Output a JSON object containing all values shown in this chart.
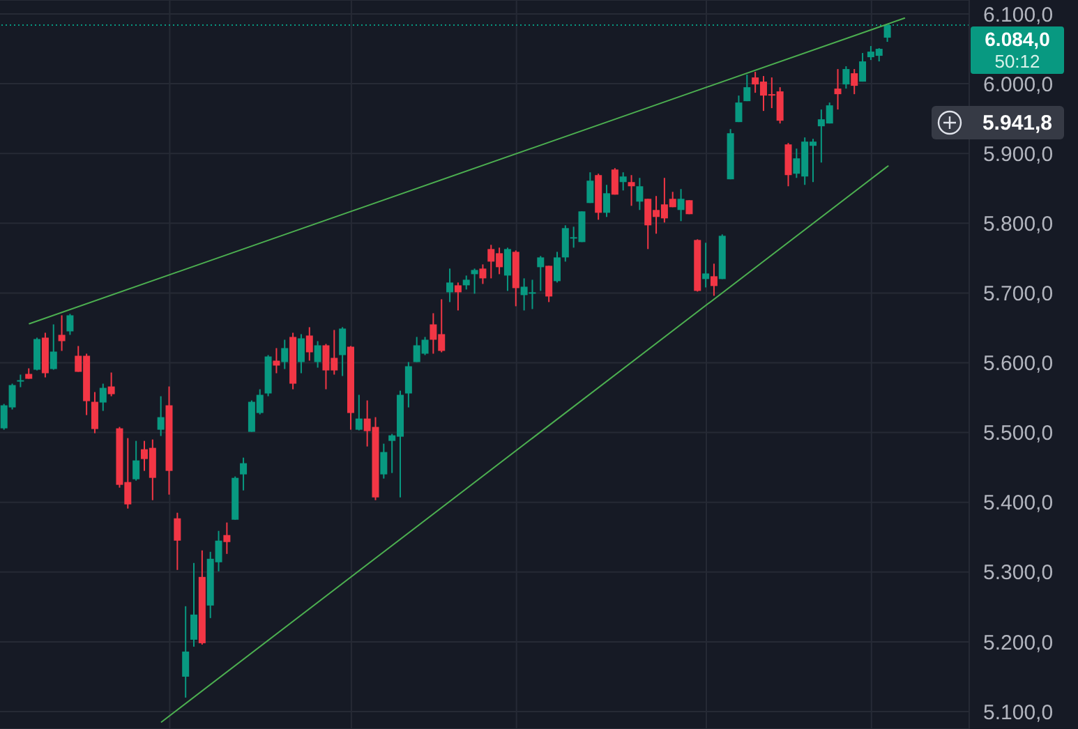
{
  "chart_data": {
    "type": "candlestick",
    "categories": [
      null,
      null,
      null,
      null,
      null,
      null,
      null,
      null,
      null,
      null,
      null,
      null,
      null,
      null,
      null,
      null,
      null,
      null,
      null,
      null,
      null,
      null,
      null,
      null,
      null,
      null,
      null,
      null,
      null,
      null,
      null,
      null,
      null,
      null,
      null,
      null,
      null,
      null,
      null,
      null,
      null,
      null,
      null,
      null,
      null,
      null,
      null,
      null,
      null,
      null,
      null,
      null,
      null,
      null,
      null,
      null,
      null,
      null,
      null,
      null,
      null,
      null,
      null,
      null,
      null,
      null,
      null,
      null,
      null,
      null,
      null,
      null,
      null,
      null,
      null,
      null,
      null,
      null,
      null,
      null,
      null,
      null,
      null,
      null,
      null,
      null,
      null,
      null,
      null,
      null,
      null,
      null,
      null,
      null,
      null,
      null,
      null,
      null,
      null,
      null,
      null,
      null,
      null,
      null,
      null,
      null,
      null,
      null,
      null,
      null
    ],
    "ohlc": [
      [
        5506,
        5541,
        5504,
        5539
      ],
      [
        5536,
        5570,
        5533,
        5568
      ],
      [
        5574,
        5583,
        5565,
        5575
      ],
      [
        5584,
        5592,
        5577,
        5577
      ],
      [
        5590,
        5636,
        5589,
        5634
      ],
      [
        5636,
        5643,
        5579,
        5585
      ],
      [
        5591,
        5655,
        5590,
        5616
      ],
      [
        5640,
        5668,
        5617,
        5631
      ],
      [
        5645,
        5670,
        5640,
        5668
      ],
      [
        5610,
        5624,
        5587,
        5587
      ],
      [
        5610,
        5613,
        5525,
        5545
      ],
      [
        5544,
        5558,
        5499,
        5505
      ],
      [
        5543,
        5570,
        5531,
        5564
      ],
      [
        5566,
        5586,
        5552,
        5555
      ],
      [
        5506,
        5508,
        5421,
        5425
      ],
      [
        5429,
        5492,
        5391,
        5397
      ],
      [
        5433,
        5488,
        5431,
        5460
      ],
      [
        5476,
        5488,
        5445,
        5462
      ],
      [
        5478,
        5490,
        5403,
        5435
      ],
      [
        5504,
        5552,
        5495,
        5522
      ],
      [
        5539,
        5566,
        5411,
        5445
      ],
      [
        5377,
        5385,
        5303,
        5345
      ],
      [
        5150,
        5251,
        5120,
        5186
      ],
      [
        5203,
        5313,
        5193,
        5239
      ],
      [
        5293,
        5331,
        5196,
        5198
      ],
      [
        5252,
        5329,
        5234,
        5319
      ],
      [
        5314,
        5359,
        5301,
        5345
      ],
      [
        5353,
        5371,
        5326,
        5343
      ],
      [
        5375,
        5437,
        5375,
        5435
      ],
      [
        5440,
        5464,
        5417,
        5456
      ],
      [
        5501,
        5546,
        5501,
        5544
      ],
      [
        5528,
        5562,
        5526,
        5554
      ],
      [
        5556,
        5611,
        5552,
        5609
      ],
      [
        5603,
        5621,
        5585,
        5596
      ],
      [
        5601,
        5633,
        5591,
        5621
      ],
      [
        5637,
        5643,
        5562,
        5570
      ],
      [
        5601,
        5641,
        5585,
        5635
      ],
      [
        5639,
        5651,
        5603,
        5615
      ],
      [
        5601,
        5631,
        5593,
        5625
      ],
      [
        5625,
        5627,
        5562,
        5589
      ],
      [
        5607,
        5647,
        5583,
        5589
      ],
      [
        5611,
        5651,
        5581,
        5649
      ],
      [
        5623,
        5624,
        5504,
        5528
      ],
      [
        5504,
        5554,
        5503,
        5520
      ],
      [
        5520,
        5546,
        5480,
        5502
      ],
      [
        5508,
        5522,
        5403,
        5407
      ],
      [
        5440,
        5484,
        5434,
        5472
      ],
      [
        5488,
        5498,
        5442,
        5496
      ],
      [
        5494,
        5560,
        5407,
        5554
      ],
      [
        5556,
        5601,
        5536,
        5595
      ],
      [
        5601,
        5637,
        5601,
        5625
      ],
      [
        5613,
        5637,
        5611,
        5633
      ],
      [
        5655,
        5671,
        5613,
        5633
      ],
      [
        5641,
        5691,
        5615,
        5617
      ],
      [
        5701,
        5735,
        5687,
        5715
      ],
      [
        5711,
        5715,
        5675,
        5701
      ],
      [
        5711,
        5725,
        5705,
        5719
      ],
      [
        5727,
        5735,
        5699,
        5733
      ],
      [
        5735,
        5741,
        5713,
        5721
      ],
      [
        5763,
        5769,
        5721,
        5745
      ],
      [
        5757,
        5765,
        5727,
        5737
      ],
      [
        5725,
        5765,
        5703,
        5763
      ],
      [
        5759,
        5761,
        5681,
        5707
      ],
      [
        5697,
        5721,
        5675,
        5709
      ],
      [
        5701,
        5719,
        5677,
        5701
      ],
      [
        5737,
        5753,
        5703,
        5751
      ],
      [
        5739,
        5739,
        5687,
        5695
      ],
      [
        5717,
        5759,
        5715,
        5751
      ],
      [
        5751,
        5797,
        5745,
        5793
      ],
      [
        5780,
        5795,
        5765,
        5780
      ],
      [
        5773,
        5817,
        5773,
        5817
      ],
      [
        5829,
        5873,
        5829,
        5861
      ],
      [
        5869,
        5871,
        5805,
        5815
      ],
      [
        5815,
        5855,
        5809,
        5843
      ],
      [
        5877,
        5879,
        5841,
        5841
      ],
      [
        5859,
        5873,
        5847,
        5867
      ],
      [
        5859,
        5869,
        5825,
        5853
      ],
      [
        5831,
        5865,
        5819,
        5853
      ],
      [
        5835,
        5835,
        5763,
        5797
      ],
      [
        5819,
        5839,
        5785,
        5809
      ],
      [
        5827,
        5865,
        5801,
        5807
      ],
      [
        5835,
        5845,
        5823,
        5823
      ],
      [
        5819,
        5849,
        5803,
        5835
      ],
      [
        5833,
        5833,
        5813,
        5813
      ],
      [
        5776,
        5777,
        5702,
        5703
      ],
      [
        5720,
        5772,
        5708,
        5728
      ],
      [
        5724,
        5742,
        5696,
        5710
      ],
      [
        5720,
        5784,
        5720,
        5782
      ],
      [
        5863,
        5935,
        5863,
        5929
      ],
      [
        5945,
        5983,
        5945,
        5973
      ],
      [
        5975,
        6013,
        5975,
        5995
      ],
      [
        6009,
        6017,
        5987,
        5999
      ],
      [
        6003,
        6011,
        5961,
        5983
      ],
      [
        5985,
        6009,
        5965,
        5984
      ],
      [
        5989,
        5995,
        5943,
        5947
      ],
      [
        5913,
        5915,
        5853,
        5869
      ],
      [
        5871,
        5907,
        5865,
        5893
      ],
      [
        5867,
        5923,
        5855,
        5917
      ],
      [
        5911,
        5921,
        5859,
        5917
      ],
      [
        5939,
        5963,
        5887,
        5949
      ],
      [
        5943,
        5973,
        5943,
        5969
      ],
      [
        5993,
        6021,
        5963,
        5985
      ],
      [
        5999,
        6025,
        5993,
        6021
      ],
      [
        6015,
        6021,
        5985,
        5997
      ],
      [
        6003,
        6044,
        6003,
        6032
      ],
      [
        6038,
        6054,
        6034,
        6046
      ],
      [
        6040,
        6051,
        6032,
        6050
      ],
      [
        6066,
        6086,
        6060,
        6084
      ],
      null,
      null
    ],
    "colors": [
      "#089981",
      "#089981",
      "#089981",
      "#f23645",
      "#089981",
      "#f23645",
      "#089981",
      "#f23645",
      "#089981",
      "#f23645",
      "#f23645",
      "#f23645",
      "#089981",
      "#f23645",
      "#f23645",
      "#f23645",
      "#089981",
      "#f23645",
      "#f23645",
      "#089981",
      "#f23645",
      "#f23645",
      "#089981",
      "#089981",
      "#f23645",
      "#089981",
      "#089981",
      "#f23645",
      "#089981",
      "#089981",
      "#089981",
      "#089981",
      "#089981",
      "#f23645",
      "#089981",
      "#f23645",
      "#089981",
      "#f23645",
      "#089981",
      "#f23645",
      "#f23645",
      "#089981",
      "#f23645",
      "#089981",
      "#f23645",
      "#f23645",
      "#089981",
      "#089981",
      "#089981",
      "#089981",
      "#089981",
      "#089981",
      "#f23645",
      "#f23645",
      "#089981",
      "#f23645",
      "#089981",
      "#089981",
      "#f23645",
      "#f23645",
      "#f23645",
      "#089981",
      "#f23645",
      "#089981",
      "#089981",
      "#089981",
      "#f23645",
      "#089981",
      "#089981",
      "#089981",
      "#089981",
      "#089981",
      "#f23645",
      "#089981",
      "#f23645",
      "#089981",
      "#f23645",
      "#089981",
      "#f23645",
      "#f23645",
      "#f23645",
      "#f23645",
      "#089981",
      "#f23645",
      "#f23645",
      "#089981",
      "#f23645",
      "#089981",
      "#089981",
      "#089981",
      "#089981",
      "#f23645",
      "#f23645",
      "#f23645",
      "#f23645",
      "#f23645",
      "#089981",
      "#089981",
      "#089981",
      "#089981",
      "#089981",
      "#f23645",
      "#089981",
      "#f23645",
      "#089981",
      "#089981",
      "#089981",
      "#089981",
      null,
      null
    ],
    "series": [
      {
        "type": "line",
        "color": "#4caf50",
        "values": [
          null,
          null,
          null,
          5656,
          null,
          null,
          null,
          null,
          null,
          null,
          null,
          null,
          null,
          null,
          null,
          null,
          null,
          null,
          null,
          null,
          null,
          null,
          null,
          null,
          null,
          null,
          null,
          null,
          null,
          null,
          null,
          null,
          null,
          null,
          null,
          null,
          null,
          null,
          null,
          null,
          null,
          null,
          null,
          null,
          null,
          null,
          null,
          null,
          null,
          null,
          null,
          null,
          null,
          null,
          null,
          null,
          null,
          null,
          null,
          null,
          null,
          null,
          null,
          null,
          null,
          null,
          null,
          null,
          null,
          null,
          null,
          null,
          null,
          null,
          null,
          null,
          null,
          null,
          null,
          null,
          null,
          null,
          null,
          null,
          null,
          null,
          null,
          null,
          null,
          null,
          null,
          null,
          null,
          null,
          null,
          null,
          null,
          null,
          null,
          null,
          null,
          null,
          null,
          null,
          null,
          null,
          null,
          null,
          null,
          6094
        ]
      },
      {
        "type": "line",
        "color": "#4caf50",
        "values": [
          null,
          null,
          null,
          null,
          null,
          null,
          null,
          null,
          null,
          null,
          null,
          null,
          null,
          null,
          null,
          null,
          null,
          null,
          null,
          5085,
          null,
          null,
          null,
          null,
          null,
          null,
          null,
          null,
          null,
          null,
          null,
          null,
          null,
          null,
          null,
          null,
          null,
          null,
          null,
          null,
          null,
          null,
          null,
          null,
          null,
          null,
          null,
          null,
          null,
          null,
          null,
          null,
          null,
          null,
          null,
          null,
          null,
          null,
          null,
          null,
          null,
          null,
          null,
          null,
          null,
          null,
          null,
          null,
          null,
          null,
          null,
          null,
          null,
          null,
          null,
          null,
          null,
          null,
          null,
          null,
          null,
          null,
          null,
          null,
          null,
          null,
          null,
          null,
          null,
          null,
          null,
          null,
          null,
          null,
          null,
          null,
          null,
          null,
          null,
          null,
          null,
          null,
          null,
          null,
          null,
          null,
          null,
          5882,
          null,
          null
        ]
      }
    ],
    "marker": "none",
    "ylim": [
      5075,
      6120
    ],
    "yticks": [
      {
        "value": 5100,
        "label": "5.100,0"
      },
      {
        "value": 5200,
        "label": "5.200,0"
      },
      {
        "value": 5300,
        "label": "5.300,0"
      },
      {
        "value": 5400,
        "label": "5.400,0"
      },
      {
        "value": 5500,
        "label": "5.500,0"
      },
      {
        "value": 5600,
        "label": "5.600,0"
      },
      {
        "value": 5700,
        "label": "5.700,0"
      },
      {
        "value": 5800,
        "label": "5.800,0"
      },
      {
        "value": 5900,
        "label": "5.900,0"
      },
      {
        "value": 6000,
        "label": "6.000,0"
      },
      {
        "value": 6100,
        "label": "6.100,0"
      }
    ],
    "tick_labels": "y",
    "grid": true,
    "ref_lines": [
      {
        "axis": "y",
        "value": 6084,
        "label": "6.084,0",
        "color": "#089981",
        "line_style": "dotted"
      }
    ],
    "annotations": [
      "50:12",
      "5.941,8"
    ]
  }
}
